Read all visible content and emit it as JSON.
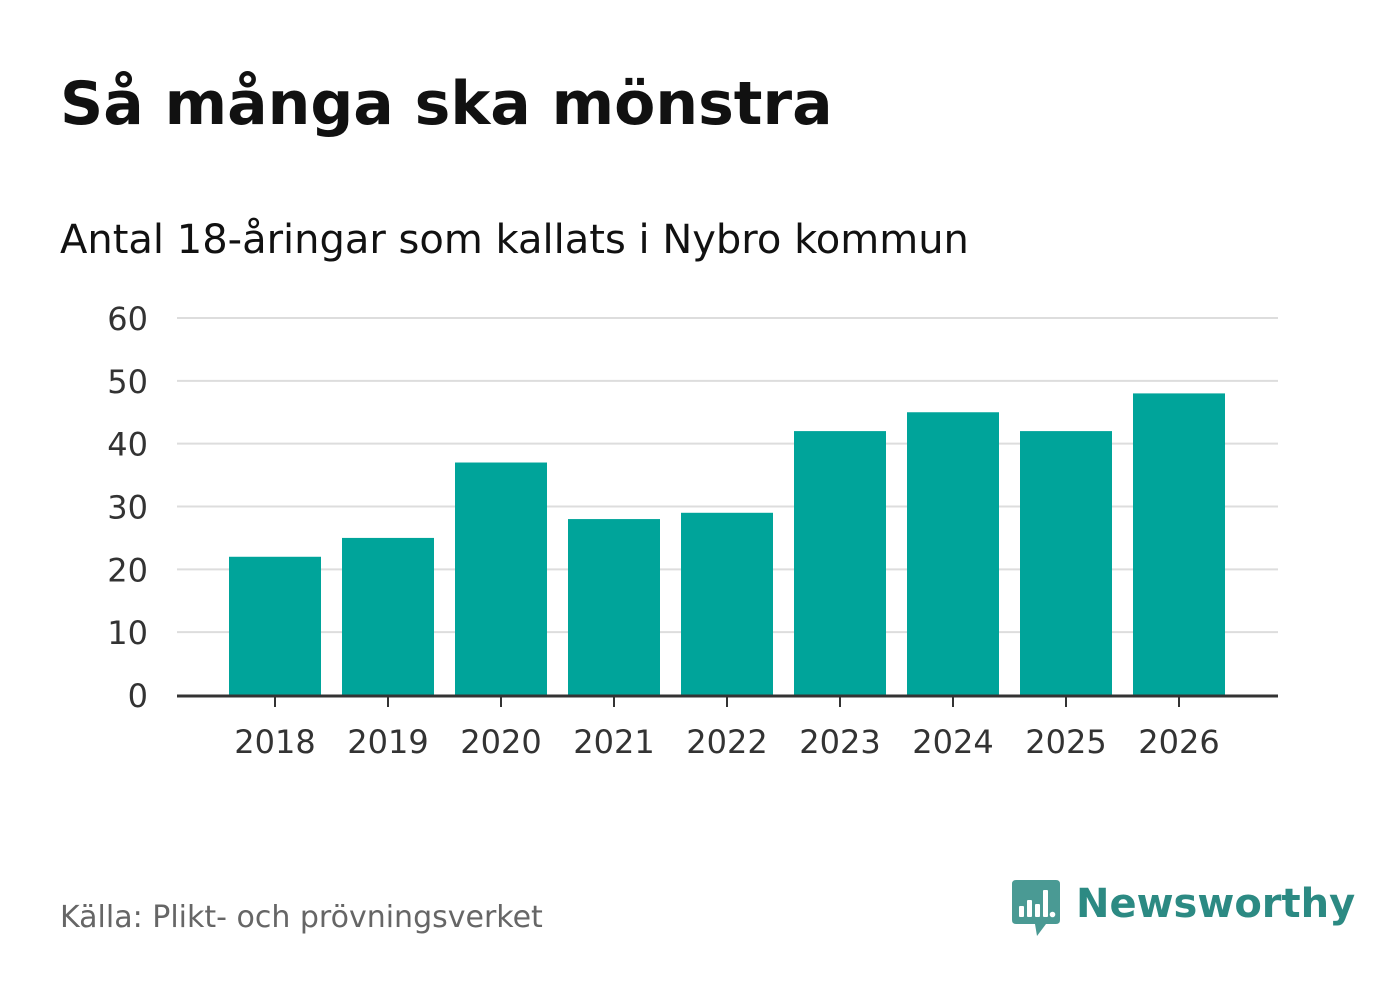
{
  "title": "Så många ska mönstra",
  "subtitle": "Antal 18-åringar som kallats i Nybro kommun",
  "source": "Källa: Plikt- och prövningsverket",
  "brand": {
    "name": "Newsworthy",
    "color": "#2c8a83",
    "logo_icon": "chart-bubble-icon"
  },
  "colors": {
    "bar": "#00a49a",
    "grid": "#dddddd",
    "axis": "#333333",
    "tick_text": "#333333"
  },
  "chart_data": {
    "type": "bar",
    "title": "Så många ska mönstra",
    "subtitle": "Antal 18-åringar som kallats i Nybro kommun",
    "xlabel": "",
    "ylabel": "",
    "categories": [
      "2018",
      "2019",
      "2020",
      "2021",
      "2022",
      "2023",
      "2024",
      "2025",
      "2026"
    ],
    "values": [
      22,
      25,
      37,
      28,
      29,
      42,
      45,
      42,
      48
    ],
    "ylim": [
      0,
      60
    ],
    "yticks": [
      0,
      10,
      20,
      30,
      40,
      50,
      60
    ],
    "ytick_labels": [
      "0",
      "10",
      "20",
      "30",
      "40",
      "50",
      "60"
    ],
    "grid": true,
    "legend": "none"
  }
}
